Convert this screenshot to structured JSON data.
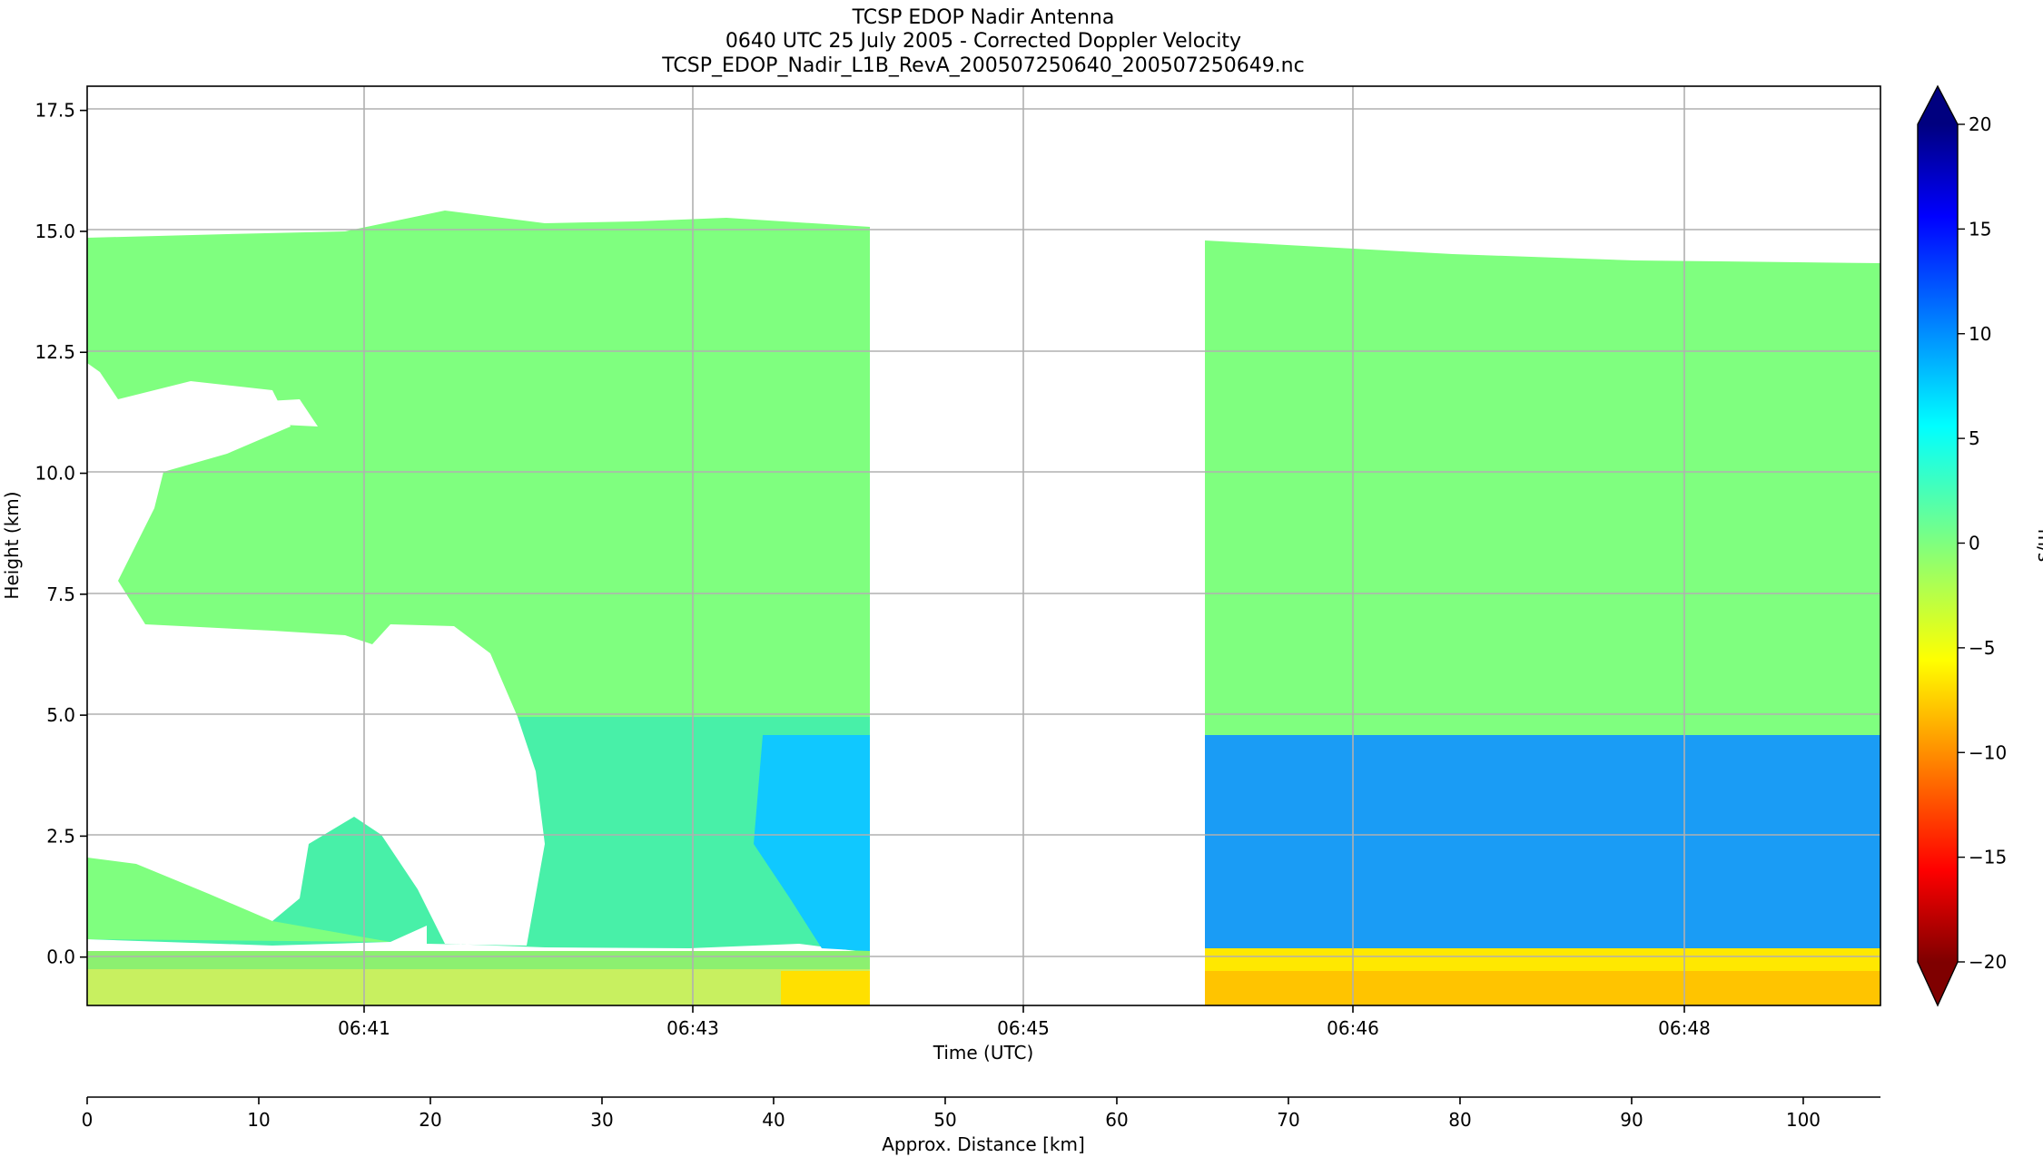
{
  "chart_data": {
    "type": "heatmap",
    "title_lines": [
      "TCSP EDOP Nadir Antenna",
      "0640 UTC 25 July 2005 - Corrected Doppler Velocity",
      "TCSP_EDOP_Nadir_L1B_RevA_200507250640_200507250649.nc"
    ],
    "xlabel": "Time (UTC)",
    "ylabel": "Height (km)",
    "x_ticks": [
      "06:41",
      "06:43",
      "06:45",
      "06:46",
      "06:48"
    ],
    "y_ticks": [
      "0.0",
      "2.5",
      "5.0",
      "7.5",
      "10.0",
      "12.5",
      "15.0",
      "17.5"
    ],
    "y_tick_values": [
      0,
      2.5,
      5,
      7.5,
      10,
      12.5,
      15,
      17.5
    ],
    "ylim": [
      -1,
      18
    ],
    "grid": true,
    "secondary_axis": {
      "xlabel": "Approx. Distance [km]",
      "ticks": [
        "0",
        "10",
        "20",
        "30",
        "40",
        "50",
        "60",
        "70",
        "80",
        "90",
        "100"
      ],
      "tick_values": [
        0,
        10,
        20,
        30,
        40,
        50,
        60,
        70,
        80,
        90,
        100
      ],
      "xlim": [
        0,
        104.5
      ]
    },
    "colorbar": {
      "label": "m/s",
      "ticks": [
        "20",
        "15",
        "10",
        "5",
        "0",
        "−5",
        "−10",
        "−15",
        "−20"
      ],
      "tick_values": [
        20,
        15,
        10,
        5,
        0,
        -5,
        -10,
        -15,
        -20
      ],
      "range": [
        -20,
        20
      ],
      "colormap": "jet_r",
      "colors": [
        "#7f0000",
        "#ff0000",
        "#ff7f00",
        "#ffff00",
        "#7fff7f",
        "#00ffff",
        "#007fff",
        "#0000ff",
        "#00007f"
      ]
    },
    "data_segments": [
      {
        "distance_km": [
          0,
          45.5
        ],
        "cloud_top_km": 15,
        "velocity_above_5km_ms": 0.5,
        "velocity_below_5km_ms": 6,
        "surface_velocity_ms": -3
      },
      {
        "distance_km": [
          65,
          104.5
        ],
        "cloud_top_km": 14.7,
        "velocity_above_5km_ms": 0.5,
        "velocity_below_5km_ms": 9,
        "surface_velocity_ms": -7
      }
    ]
  }
}
